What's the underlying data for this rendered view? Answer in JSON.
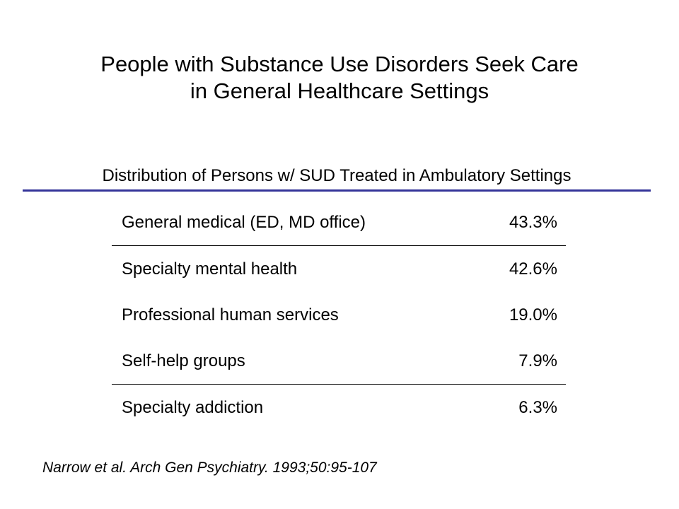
{
  "title": {
    "line1": "People with Substance Use Disorders Seek Care",
    "line2": "in General Healthcare Settings"
  },
  "subtitle": "Distribution of Persons w/ SUD Treated in Ambulatory Settings",
  "accent_color": "#333399",
  "table": {
    "rows": [
      {
        "setting": "General medical (ED, MD office)",
        "percent": "43.3%"
      },
      {
        "setting": "Specialty mental health",
        "percent": "42.6%"
      },
      {
        "setting": "Professional human services",
        "percent": "19.0%"
      },
      {
        "setting": "Self-help groups",
        "percent": "7.9%"
      },
      {
        "setting": "Specialty addiction",
        "percent": "6.3%"
      }
    ]
  },
  "citation": "Narrow et al. Arch Gen Psychiatry. 1993;50:95-107"
}
